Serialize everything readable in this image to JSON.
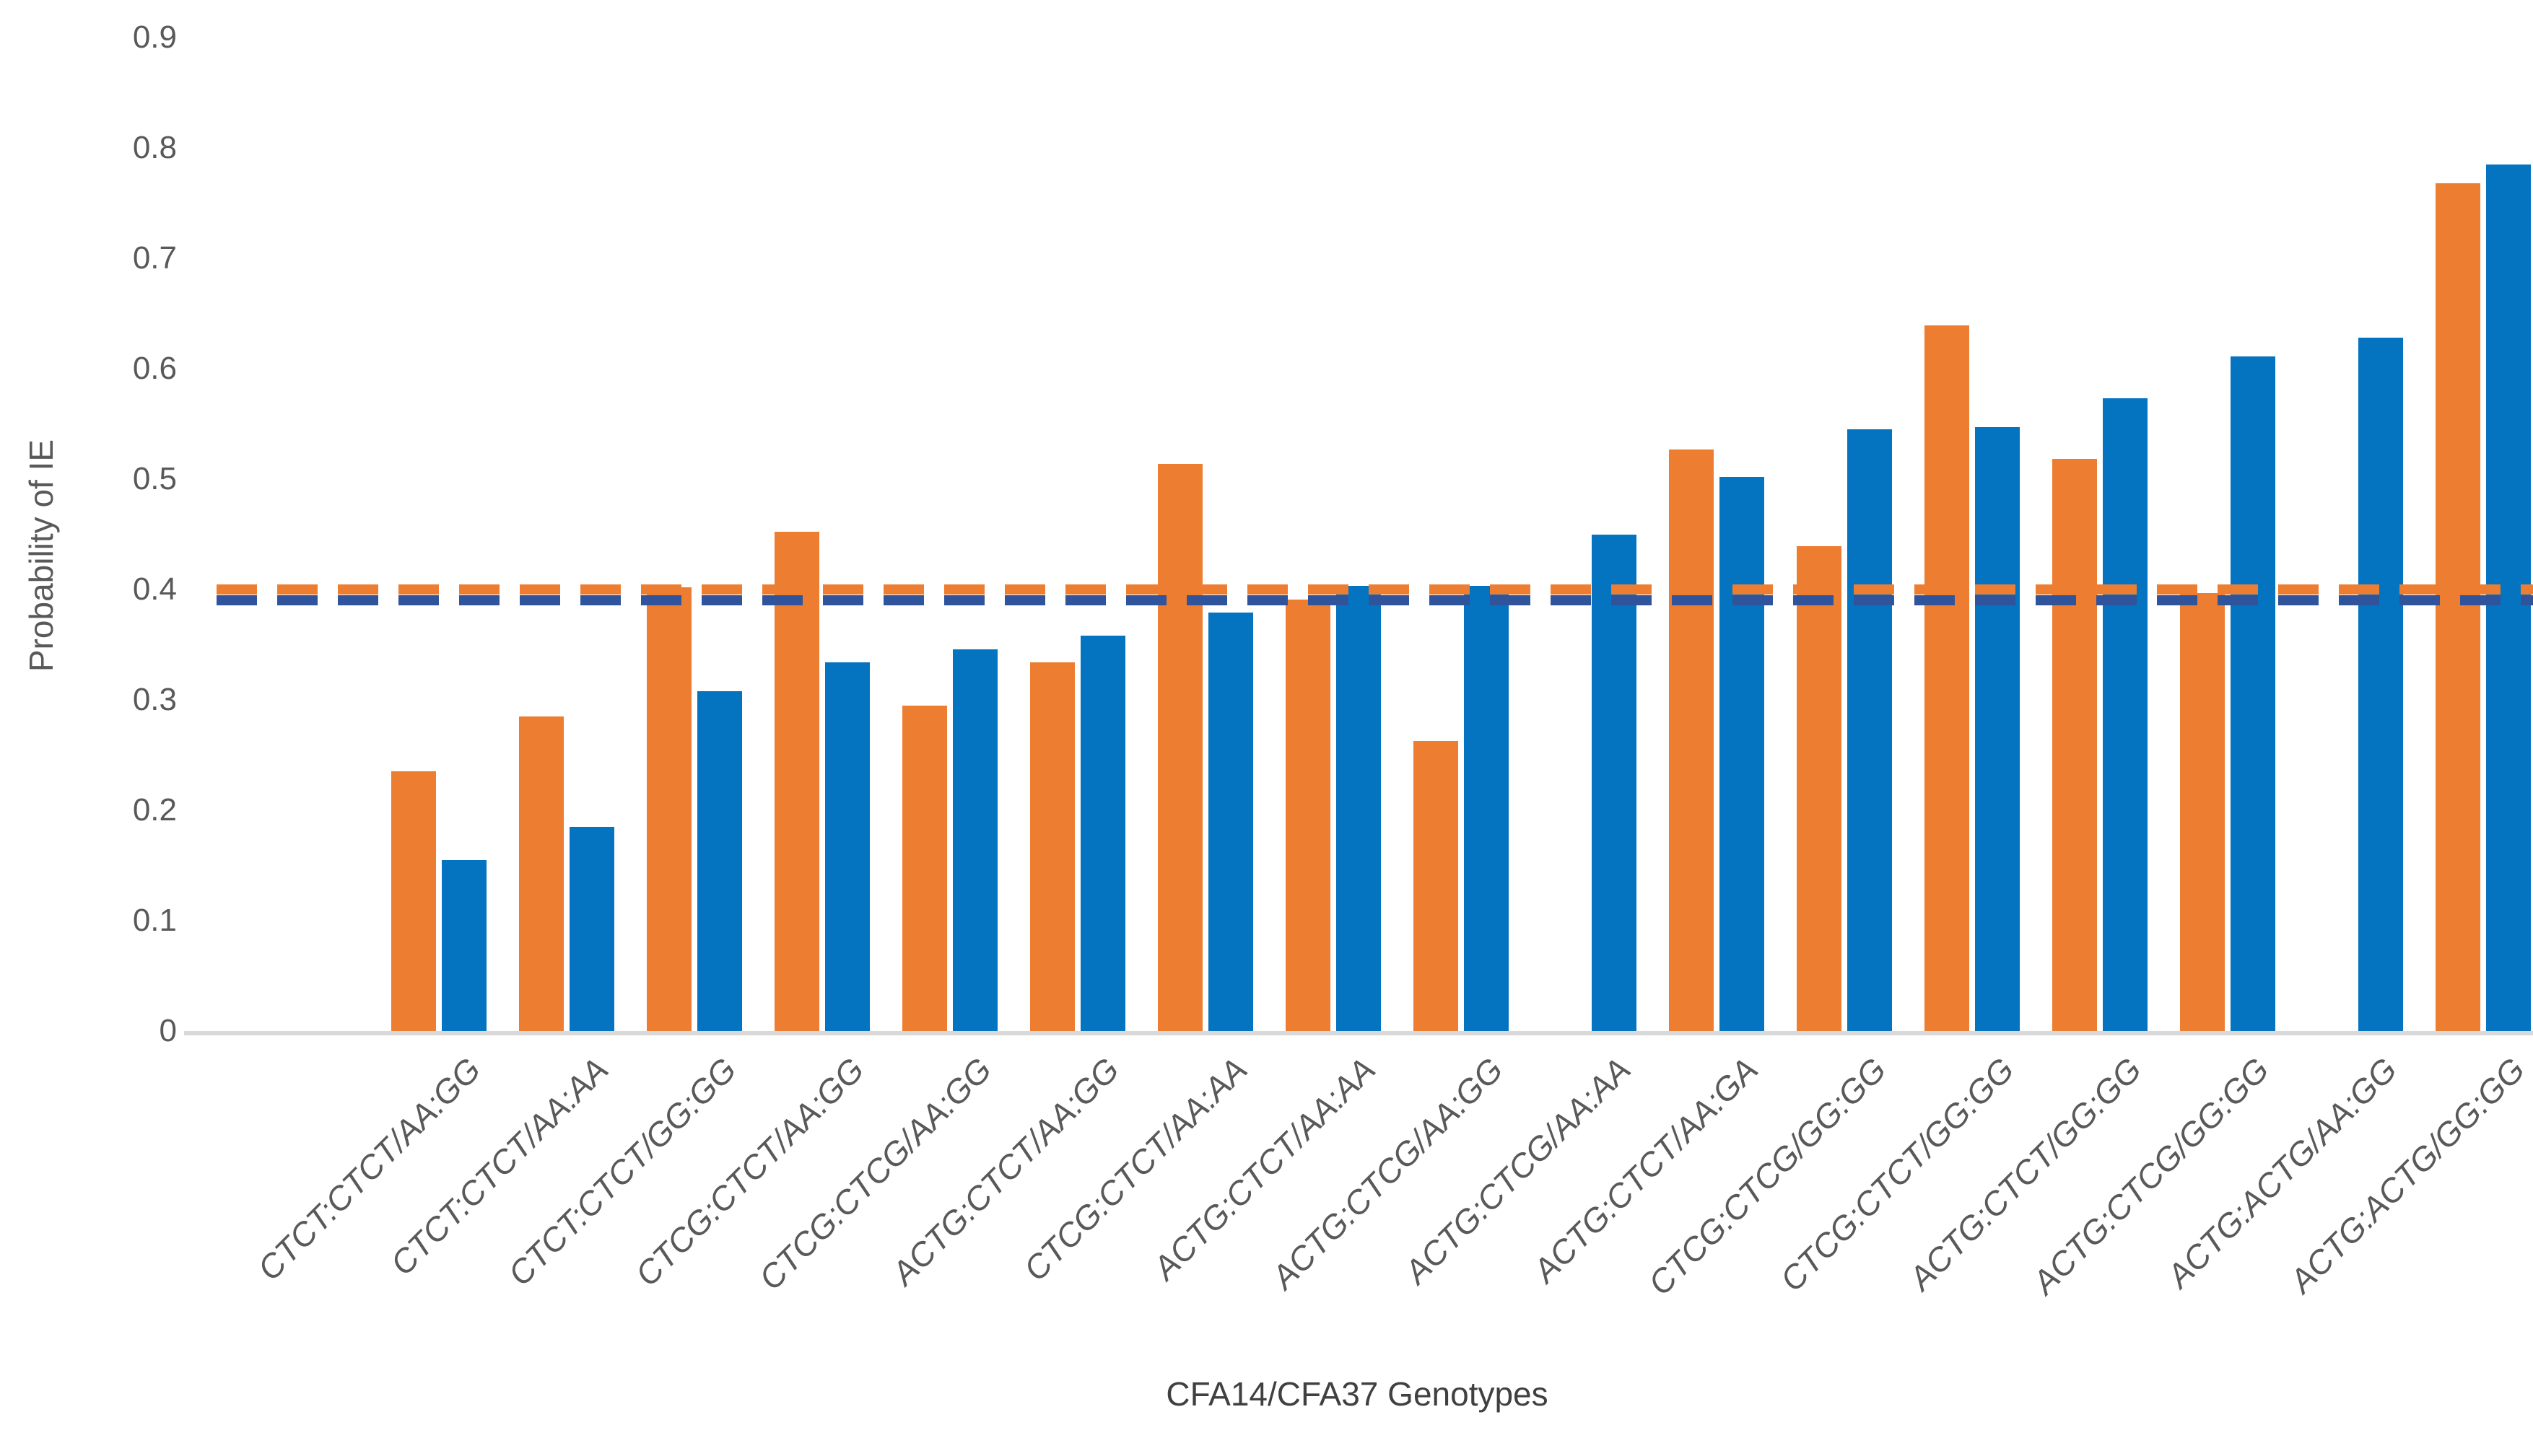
{
  "chart_data": {
    "type": "bar",
    "title": "",
    "xlabel": "CFA14/CFA37 Genotypes",
    "ylabel": "Probability of IE",
    "ylim": [
      0,
      0.9
    ],
    "ytick_step": 0.1,
    "yticks": [
      "0",
      "0.1",
      "0.2",
      "0.3",
      "0.4",
      "0.5",
      "0.6",
      "0.7",
      "0.8",
      "0.9"
    ],
    "grid": false,
    "legend_position": "none",
    "categories": [
      "CTCT:CTCT/AA:GG",
      "CTCT:CTCT/AA:AA",
      "CTCT:CTCT/GG:GG",
      "CTCG:CTCT/AA:GG",
      "CTCG:CTCG/AA:GG",
      "ACTG:CTCT/AA:GG",
      "CTCG:CTCT/AA:AA",
      "ACTG:CTCT/AA:AA",
      "ACTG:CTCG/AA:GG",
      "ACTG:CTCG/AA:AA",
      "ACTG:CTCT/AA:GA",
      "CTCG:CTCG/GG:GG",
      "CTCG:CTCT/GG:GG",
      "ACTG:CTCT/GG:GG",
      "ACTG:CTCG/GG:GG",
      "ACTG:ACTG/AA:GG",
      "ACTG:ACTG/GG:GG"
    ],
    "series": [
      {
        "name": "orange-series",
        "color": "#ED7D31",
        "values": [
          0.235,
          0.285,
          0.402,
          0.452,
          0.295,
          0.334,
          0.514,
          0.391,
          0.263,
          null,
          0.527,
          0.439,
          0.639,
          0.518,
          0.397,
          null,
          0.768
        ]
      },
      {
        "name": "blue-series",
        "color": "#0473C0",
        "values": [
          0.155,
          0.185,
          0.308,
          0.334,
          0.346,
          0.358,
          0.379,
          0.403,
          0.403,
          0.45,
          0.502,
          0.545,
          0.547,
          0.573,
          0.611,
          0.628,
          0.785
        ]
      }
    ],
    "reference_lines": [
      {
        "name": "orange-dashed-reference-line",
        "color": "#ED7D31",
        "value": 0.4,
        "style": "dashed"
      },
      {
        "name": "blue-dashed-reference-line",
        "color": "#30549B",
        "value": 0.39,
        "style": "dashed"
      }
    ]
  },
  "colors": {
    "axis_line": "#D9D9D9",
    "tick_text": "#595959",
    "category_text": "#595959",
    "background": "#FFFFFF"
  }
}
